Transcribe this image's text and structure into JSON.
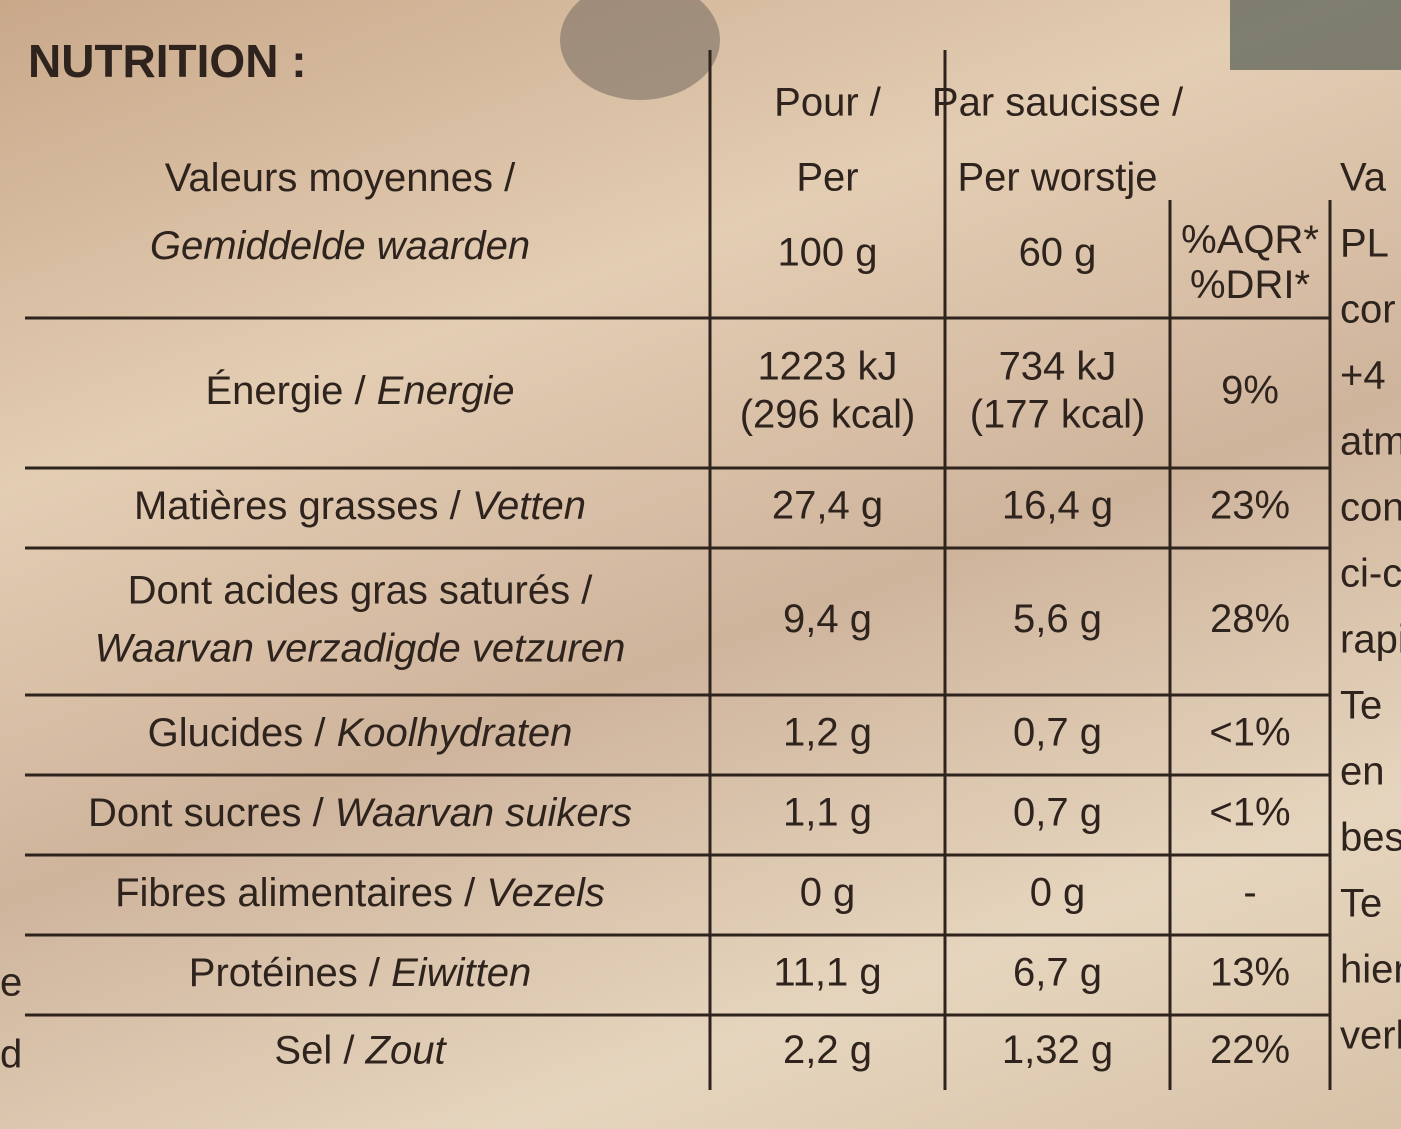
{
  "title": "NUTRITION :",
  "header": {
    "label": [
      [
        {
          "text": "Valeurs moyennes /",
          "italic": false
        }
      ],
      [
        {
          "text": "Gemiddelde waarden",
          "italic": true
        }
      ]
    ],
    "col1": [
      "Pour /",
      "Per",
      "100 g"
    ],
    "col2": [
      "Par saucisse /",
      "Per worstje",
      "60 g"
    ],
    "col3": [
      "%AQR*",
      "%DRI*"
    ]
  },
  "rows": [
    {
      "label": [
        [
          {
            "text": "Énergie / ",
            "italic": false
          },
          {
            "text": "Energie",
            "italic": true
          }
        ]
      ],
      "per100": [
        "1223 kJ",
        "(296 kcal)"
      ],
      "per_portion": [
        "734 kJ",
        "(177 kcal)"
      ],
      "pct": [
        "9%"
      ]
    },
    {
      "label": [
        [
          {
            "text": "Matières grasses / ",
            "italic": false
          },
          {
            "text": "Vetten",
            "italic": true
          }
        ]
      ],
      "per100": [
        "27,4 g"
      ],
      "per_portion": [
        "16,4 g"
      ],
      "pct": [
        "23%"
      ]
    },
    {
      "label": [
        [
          {
            "text": "Dont acides gras saturés /",
            "italic": false
          }
        ],
        [
          {
            "text": "Waarvan verzadigde vetzuren",
            "italic": true
          }
        ]
      ],
      "per100": [
        "9,4 g"
      ],
      "per_portion": [
        "5,6 g"
      ],
      "pct": [
        "28%"
      ]
    },
    {
      "label": [
        [
          {
            "text": "Glucides / ",
            "italic": false
          },
          {
            "text": "Koolhydraten",
            "italic": true
          }
        ]
      ],
      "per100": [
        "1,2 g"
      ],
      "per_portion": [
        "0,7 g"
      ],
      "pct": [
        "<1%"
      ]
    },
    {
      "label": [
        [
          {
            "text": "Dont sucres / ",
            "italic": false
          },
          {
            "text": "Waarvan suikers",
            "italic": true
          }
        ]
      ],
      "per100": [
        "1,1 g"
      ],
      "per_portion": [
        "0,7 g"
      ],
      "pct": [
        "<1%"
      ]
    },
    {
      "label": [
        [
          {
            "text": "Fibres alimentaires / ",
            "italic": false
          },
          {
            "text": "Vezels",
            "italic": true
          }
        ]
      ],
      "per100": [
        "0 g"
      ],
      "per_portion": [
        "0 g"
      ],
      "pct": [
        "-"
      ]
    },
    {
      "label": [
        [
          {
            "text": "Protéines / ",
            "italic": false
          },
          {
            "text": "Eiwitten",
            "italic": true
          }
        ]
      ],
      "per100": [
        "11,1 g"
      ],
      "per_portion": [
        "6,7 g"
      ],
      "pct": [
        "13%"
      ]
    },
    {
      "label": [
        [
          {
            "text": "Sel / ",
            "italic": false
          },
          {
            "text": "Zout",
            "italic": true
          }
        ]
      ],
      "per100": [
        "2,2 g"
      ],
      "per_portion": [
        "1,32 g"
      ],
      "pct": [
        "22%"
      ]
    }
  ],
  "right_fragments": [
    "Va",
    "PL",
    "cor",
    "+4",
    "atm",
    "con",
    "ci-c",
    "rapi",
    "Te",
    "en",
    "bes",
    "Te",
    "hier",
    "verb"
  ],
  "left_fragments": [
    "e",
    "d"
  ]
}
